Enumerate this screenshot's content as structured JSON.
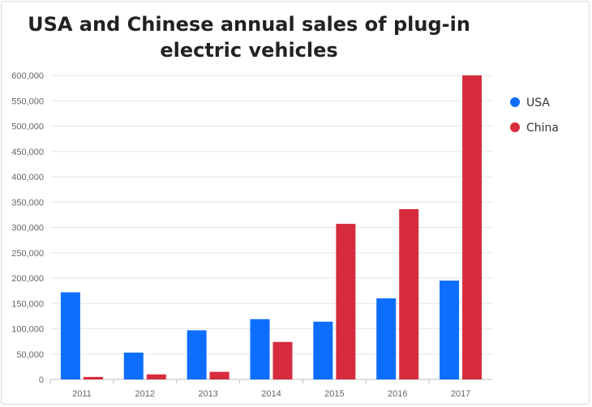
{
  "chart_data": {
    "type": "bar",
    "title": "USA and Chinese annual sales of plug-in electric vehicles",
    "xlabel": "",
    "ylabel": "",
    "categories": [
      "2011",
      "2012",
      "2013",
      "2014",
      "2015",
      "2016",
      "2017"
    ],
    "ylim": [
      0,
      600000
    ],
    "yticks": [
      0,
      50000,
      100000,
      150000,
      200000,
      250000,
      300000,
      350000,
      400000,
      450000,
      500000,
      550000,
      600000
    ],
    "ytick_labels": [
      "0",
      "50,000",
      "100,000",
      "150,000",
      "200,000",
      "250,000",
      "300,000",
      "350,000",
      "400,000",
      "450,000",
      "500,000",
      "550,000",
      "600,000"
    ],
    "grid": true,
    "legend_position": "right",
    "series": [
      {
        "name": "USA",
        "color": "#0d6efd",
        "values": [
          172000,
          53000,
          97000,
          119000,
          114000,
          160000,
          195000
        ]
      },
      {
        "name": "China",
        "color": "#d62c3d",
        "values": [
          5000,
          10000,
          15000,
          74000,
          307000,
          336000,
          600000
        ]
      }
    ]
  }
}
